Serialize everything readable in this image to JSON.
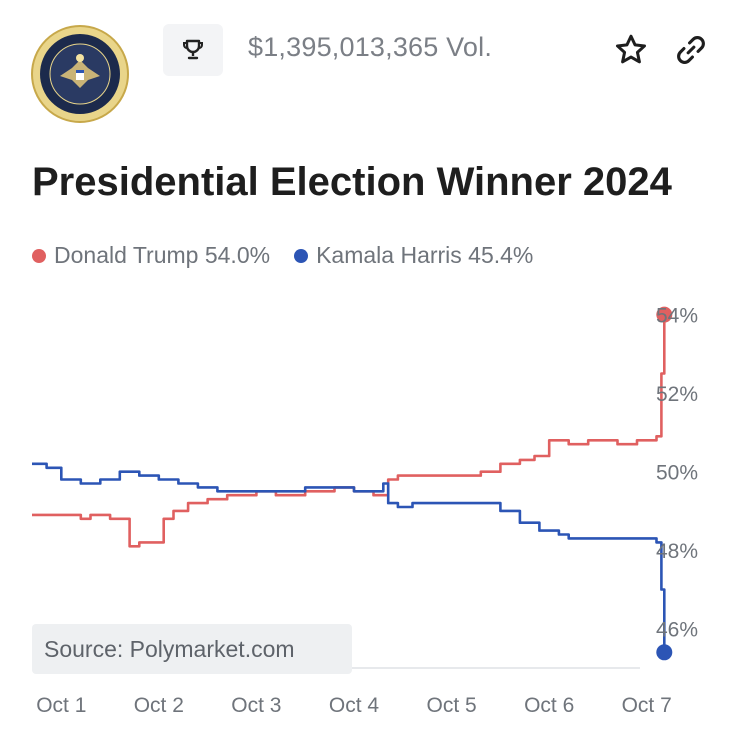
{
  "header": {
    "volume_text": "$1,395,013,365 Vol.",
    "seal_icon": "presidential-seal-icon",
    "trophy_icon": "trophy-icon",
    "star_icon": "star-icon",
    "link_icon": "link-icon"
  },
  "chart_data": {
    "type": "line",
    "title": "Presidential Election Winner 2024",
    "xlabel": "",
    "ylabel": "",
    "x_ticks": [
      "Oct 1",
      "Oct 2",
      "Oct 3",
      "Oct 4",
      "Oct 5",
      "Oct 6",
      "Oct 7"
    ],
    "y_ticks": [
      "54%",
      "52%",
      "50%",
      "48%",
      "46%"
    ],
    "y_tick_values": [
      54,
      52,
      50,
      48,
      46
    ],
    "xlim": [
      0.7,
      7.3
    ],
    "ylim": [
      45,
      54.5
    ],
    "grid": false,
    "legend": "top-left",
    "series": [
      {
        "name": "Donald Trump",
        "legend_label": "Donald Trump 54.0%",
        "color": "#e06060",
        "x": [
          0.7,
          1.0,
          1.2,
          1.3,
          1.5,
          1.7,
          1.8,
          1.95,
          2.05,
          2.15,
          2.3,
          2.5,
          2.7,
          3.0,
          3.2,
          3.5,
          3.8,
          4.0,
          4.2,
          4.35,
          4.45,
          4.6,
          4.8,
          5.0,
          5.3,
          5.5,
          5.7,
          5.85,
          6.0,
          6.2,
          6.4,
          6.7,
          6.9,
          7.1,
          7.15,
          7.18
        ],
        "y": [
          48.9,
          48.9,
          48.8,
          48.9,
          48.8,
          48.1,
          48.2,
          48.2,
          48.8,
          49.0,
          49.2,
          49.3,
          49.4,
          49.5,
          49.4,
          49.5,
          49.6,
          49.5,
          49.4,
          49.8,
          49.9,
          49.9,
          49.9,
          49.9,
          50.0,
          50.2,
          50.3,
          50.4,
          50.8,
          50.7,
          50.8,
          50.7,
          50.8,
          50.9,
          52.5,
          54.0
        ]
      },
      {
        "name": "Kamala Harris",
        "legend_label": "Kamala Harris 45.4%",
        "color": "#2c55b5",
        "x": [
          0.7,
          0.85,
          1.0,
          1.2,
          1.4,
          1.6,
          1.8,
          2.0,
          2.2,
          2.4,
          2.6,
          2.8,
          3.0,
          3.2,
          3.5,
          3.8,
          4.0,
          4.2,
          4.3,
          4.35,
          4.45,
          4.6,
          4.8,
          5.0,
          5.3,
          5.5,
          5.7,
          5.9,
          6.1,
          6.2,
          6.4,
          6.7,
          6.9,
          7.1,
          7.15,
          7.18
        ],
        "y": [
          50.2,
          50.1,
          49.8,
          49.7,
          49.8,
          50.0,
          49.9,
          49.8,
          49.7,
          49.6,
          49.5,
          49.5,
          49.5,
          49.5,
          49.6,
          49.6,
          49.5,
          49.5,
          49.7,
          49.2,
          49.1,
          49.2,
          49.2,
          49.2,
          49.2,
          49.0,
          48.7,
          48.5,
          48.4,
          48.3,
          48.3,
          48.3,
          48.3,
          48.2,
          47.0,
          45.4
        ]
      }
    ],
    "annotation": "Source: Polymarket.com"
  }
}
